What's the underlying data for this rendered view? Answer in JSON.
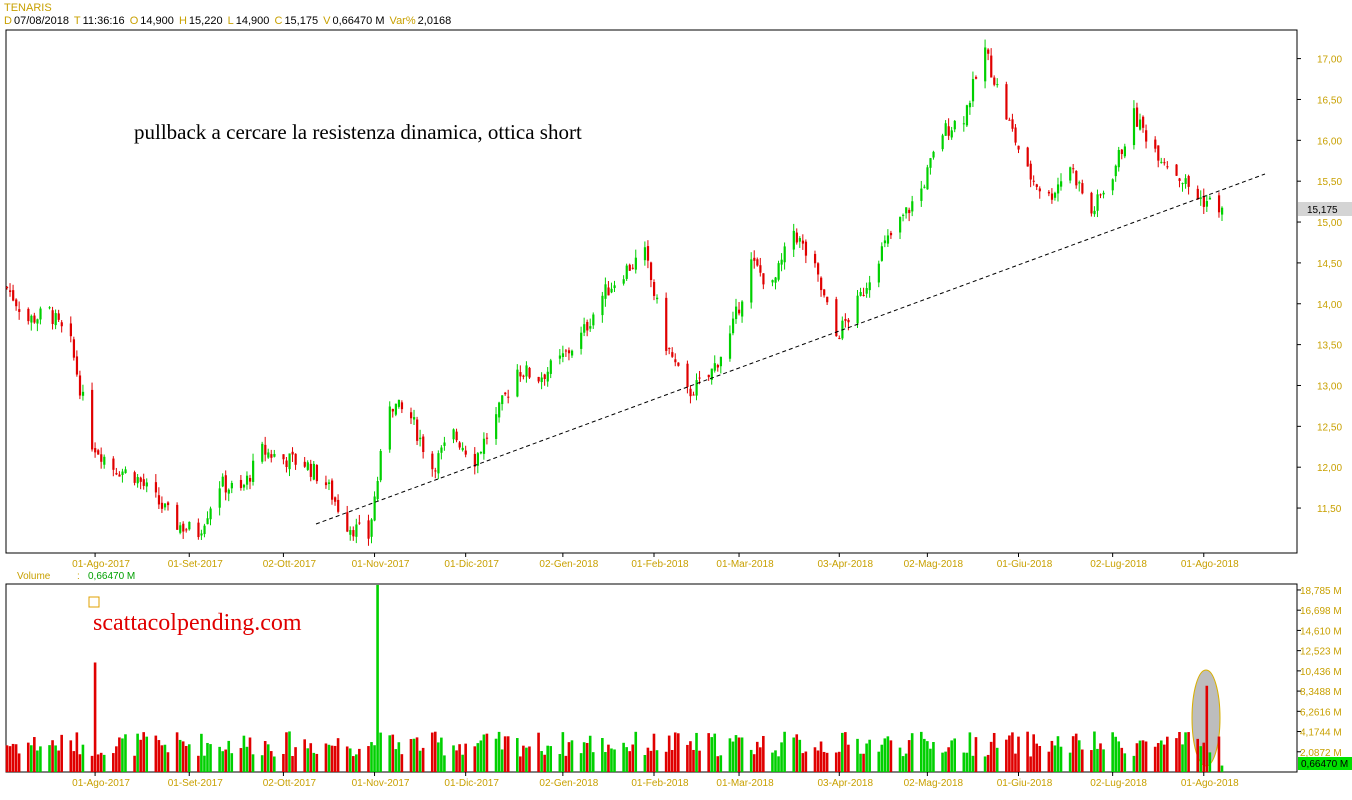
{
  "header": {
    "symbol": "TENARIS",
    "date_label": "D",
    "date": "07/08/2018",
    "time_label": "T",
    "time": "11:36:16",
    "open_label": "O",
    "open": "14,900",
    "high_label": "H",
    "high": "15,220",
    "low_label": "L",
    "low": "14,900",
    "close_label": "C",
    "close": "15,175",
    "vol_label": "V",
    "vol": "0,66470 M",
    "var_label": "Var%",
    "var": "2,0168"
  },
  "annotation_text": "pullback a cercare la resistenza dinamica, ottica short",
  "watermark_text": "scattacolpending.com",
  "volume_label": "Volume",
  "volume_sep": ":",
  "volume_value": "0,66470 M",
  "last_price_tag": "15,175",
  "last_volume_tag": "0,66470 M",
  "colors": {
    "up": "#00d000",
    "down": "#e00000",
    "axis_text": "#c8a000",
    "trendline": "#000000",
    "highlight": "#b0b0b0"
  },
  "chart_data": [
    {
      "type": "candlestick",
      "title": "TENARIS",
      "x_ticks": [
        "01-Ago-2017",
        "01-Set-2017",
        "02-Ott-2017",
        "01-Nov-2017",
        "01-Dic-2017",
        "02-Gen-2018",
        "01-Feb-2018",
        "01-Mar-2018",
        "03-Apr-2018",
        "02-Mag-2018",
        "01-Giu-2018",
        "02-Lug-2018",
        "01-Ago-2018"
      ],
      "y_ticks": [
        "11,50",
        "12,00",
        "12,50",
        "13,00",
        "13,50",
        "14,00",
        "14,50",
        "15,00",
        "15,50",
        "16,00",
        "16,50",
        "17,00"
      ],
      "ylim": [
        10.95,
        17.35
      ],
      "last_value": 15.175,
      "close_path": [
        {
          "date": "2017-07-03",
          "close": 14.2
        },
        {
          "date": "2017-07-10",
          "close": 13.8
        },
        {
          "date": "2017-07-17",
          "close": 13.9
        },
        {
          "date": "2017-07-24",
          "close": 13.5
        },
        {
          "date": "2017-07-31",
          "close": 12.3
        },
        {
          "date": "2017-08-07",
          "close": 12.0
        },
        {
          "date": "2017-08-14",
          "close": 11.9
        },
        {
          "date": "2017-08-21",
          "close": 11.6
        },
        {
          "date": "2017-08-28",
          "close": 11.3
        },
        {
          "date": "2017-09-04",
          "close": 11.2
        },
        {
          "date": "2017-09-11",
          "close": 11.8
        },
        {
          "date": "2017-09-18",
          "close": 11.7
        },
        {
          "date": "2017-09-25",
          "close": 12.2
        },
        {
          "date": "2017-10-02",
          "close": 12.1
        },
        {
          "date": "2017-10-09",
          "close": 12.05
        },
        {
          "date": "2017-10-16",
          "close": 11.8
        },
        {
          "date": "2017-10-23",
          "close": 11.3
        },
        {
          "date": "2017-10-30",
          "close": 11.15
        },
        {
          "date": "2017-11-06",
          "close": 12.8
        },
        {
          "date": "2017-11-13",
          "close": 12.6
        },
        {
          "date": "2017-11-20",
          "close": 12.0
        },
        {
          "date": "2017-11-27",
          "close": 12.4
        },
        {
          "date": "2017-12-04",
          "close": 12.1
        },
        {
          "date": "2017-12-11",
          "close": 12.6
        },
        {
          "date": "2017-12-18",
          "close": 13.2
        },
        {
          "date": "2017-12-25",
          "close": 13.1
        },
        {
          "date": "2018-01-01",
          "close": 13.3
        },
        {
          "date": "2018-01-08",
          "close": 13.6
        },
        {
          "date": "2018-01-15",
          "close": 14.1
        },
        {
          "date": "2018-01-22",
          "close": 14.4
        },
        {
          "date": "2018-01-29",
          "close": 14.6
        },
        {
          "date": "2018-02-05",
          "close": 13.5
        },
        {
          "date": "2018-02-12",
          "close": 12.9
        },
        {
          "date": "2018-02-19",
          "close": 13.1
        },
        {
          "date": "2018-02-26",
          "close": 13.6
        },
        {
          "date": "2018-03-05",
          "close": 14.5
        },
        {
          "date": "2018-03-12",
          "close": 14.2
        },
        {
          "date": "2018-03-19",
          "close": 14.9
        },
        {
          "date": "2018-03-26",
          "close": 14.4
        },
        {
          "date": "2018-04-02",
          "close": 13.6
        },
        {
          "date": "2018-04-09",
          "close": 14.0
        },
        {
          "date": "2018-04-16",
          "close": 14.6
        },
        {
          "date": "2018-04-23",
          "close": 15.0
        },
        {
          "date": "2018-04-30",
          "close": 15.4
        },
        {
          "date": "2018-05-07",
          "close": 16.1
        },
        {
          "date": "2018-05-14",
          "close": 16.3
        },
        {
          "date": "2018-05-21",
          "close": 17.1
        },
        {
          "date": "2018-05-28",
          "close": 16.3
        },
        {
          "date": "2018-06-04",
          "close": 15.6
        },
        {
          "date": "2018-06-11",
          "close": 15.3
        },
        {
          "date": "2018-06-18",
          "close": 15.7
        },
        {
          "date": "2018-06-25",
          "close": 15.1
        },
        {
          "date": "2018-07-02",
          "close": 15.6
        },
        {
          "date": "2018-07-09",
          "close": 16.3
        },
        {
          "date": "2018-07-16",
          "close": 15.9
        },
        {
          "date": "2018-07-23",
          "close": 15.6
        },
        {
          "date": "2018-07-30",
          "close": 15.3
        },
        {
          "date": "2018-08-07",
          "close": 15.175
        }
      ]
    },
    {
      "type": "bar",
      "title": "Volume",
      "y_ticks": [
        "2,0872 M",
        "4,1744 M",
        "6,2616 M",
        "8,3488 M",
        "10,436 M",
        "12,523 M",
        "14,610 M",
        "16,698 M",
        "18,785 M"
      ],
      "ylim": [
        0,
        19.4
      ],
      "unit": "M",
      "notable": [
        {
          "date": "2017-08-01",
          "volume": 11.3,
          "direction": "down"
        },
        {
          "date": "2017-11-02",
          "volume": 19.3,
          "direction": "up"
        },
        {
          "date": "2018-08-02",
          "volume": 8.9,
          "direction": "down"
        },
        {
          "date": "2018-08-07",
          "volume": 0.6647,
          "direction": "up"
        }
      ]
    }
  ]
}
